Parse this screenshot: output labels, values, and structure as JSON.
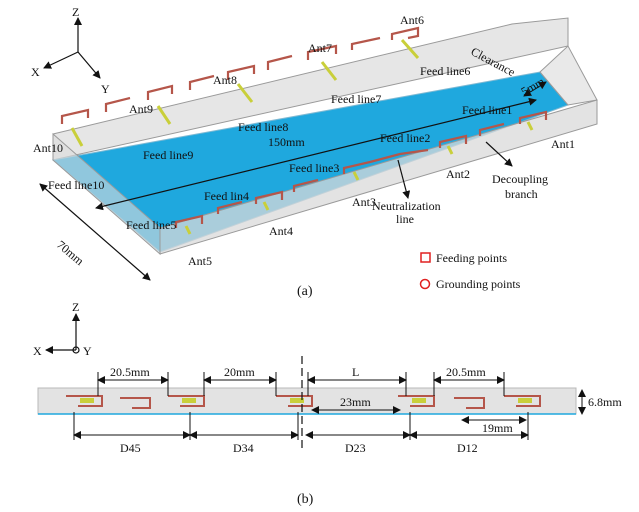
{
  "panel_a": {
    "axes": {
      "z": "Z",
      "x": "X",
      "y": "Y"
    },
    "antennas": {
      "ant1": "Ant1",
      "ant2": "Ant2",
      "ant3": "Ant3",
      "ant4": "Ant4",
      "ant5": "Ant5",
      "ant6": "Ant6",
      "ant7": "Ant7",
      "ant8": "Ant8",
      "ant9": "Ant9",
      "ant10": "Ant10"
    },
    "feed_lines": {
      "f1": "Feed line1",
      "f2": "Feed line2",
      "f3": "Feed line3",
      "f4": "Feed lin4",
      "f5": "Feed line5",
      "f6": "Feed line6",
      "f7": "Feed line7",
      "f8": "Feed line8",
      "f9": "Feed line9",
      "f10": "Feed line10"
    },
    "clearance": "Clearance",
    "five_mm": "5mm",
    "length": "150mm",
    "width": "70mm",
    "neutralization_1": "Neutralization",
    "neutralization_2": "line",
    "decoupling_1": "Decoupling",
    "decoupling_2": "branch",
    "legend": {
      "feeding": "Feeding points",
      "grounding": "Grounding points"
    },
    "caption": "(a)"
  },
  "panel_b": {
    "axes": {
      "z": "Z",
      "x": "X",
      "y": "Y"
    },
    "gap_left": "20.5mm",
    "gap_mid": "20mm",
    "L": "L",
    "gap_right": "20.5mm",
    "d23_inner": "23mm",
    "d12_inner": "19mm",
    "height": "6.8mm",
    "d45": "D45",
    "d34": "D34",
    "d23": "D23",
    "d12": "D12",
    "caption": "(b)"
  },
  "colors": {
    "ground_plane": "#1fa8de",
    "antenna_trace": "#b5564a",
    "feed_line": "#c9cf3a",
    "marker": "#e02020",
    "frame": "#b8b8b8"
  }
}
